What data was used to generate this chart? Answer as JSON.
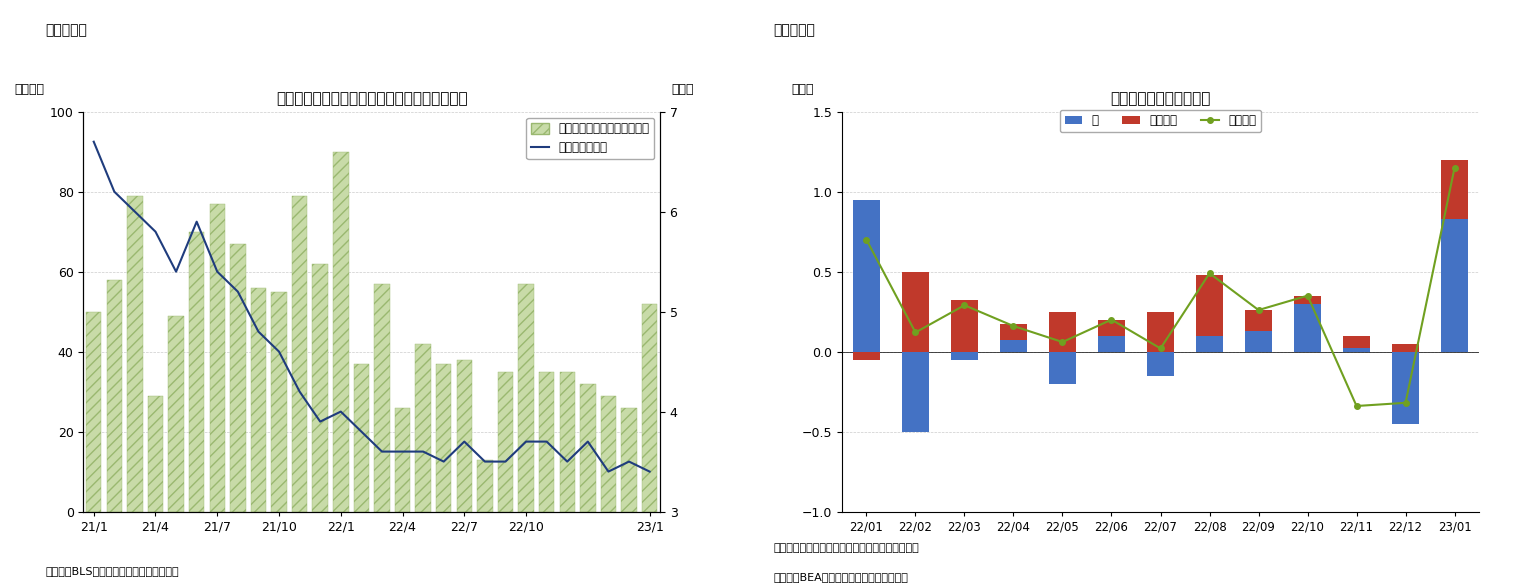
{
  "chart1": {
    "title": "米国の雇用動向（非農業部門雇用増と失業率）",
    "label_left": "（万人）",
    "label_right": "（％）",
    "super_title": "（図表２）",
    "source": "（資料）BLSよりニッセイ基礎研究所作成",
    "bar_label": "非農業部門雇用増（前月差）",
    "line_label": "失業率（右軸）",
    "bar_color": "#c8dba8",
    "bar_hatch": "///",
    "bar_hatch_color": "#9ab870",
    "line_color": "#1f3c7d",
    "x_labels": [
      "21/1",
      "21/4",
      "21/7",
      "21/10",
      "22/1",
      "22/4",
      "22/7",
      "22/10",
      "23/1"
    ],
    "tick_positions": [
      0,
      3,
      6,
      9,
      12,
      15,
      18,
      21,
      27
    ],
    "bar_values": [
      50,
      58,
      79,
      29,
      49,
      70,
      77,
      67,
      56,
      55,
      79,
      62,
      90,
      37,
      57,
      26,
      42,
      37,
      38,
      13,
      35,
      57,
      35,
      35,
      32,
      29,
      26,
      52
    ],
    "unemployment_rate": [
      6.7,
      6.2,
      6.0,
      5.8,
      5.4,
      5.9,
      5.4,
      5.2,
      4.8,
      4.6,
      4.2,
      3.9,
      4.0,
      3.8,
      3.6,
      3.6,
      3.6,
      3.5,
      3.7,
      3.5,
      3.5,
      3.7,
      3.7,
      3.5,
      3.7,
      3.4,
      3.5,
      3.4
    ],
    "ylim_left": [
      0,
      100
    ],
    "ylim_right": [
      3,
      7
    ],
    "yticks_left": [
      0,
      20,
      40,
      60,
      80,
      100
    ],
    "yticks_right": [
      3,
      4,
      5,
      6,
      7
    ]
  },
  "chart2": {
    "title": "実質個人消費（前月比）",
    "label_left": "（％）",
    "super_title": "（図表３）",
    "note": "（注）季節調節済み、前月比。棒グラフは寄与度",
    "source": "（資料）BEAよりニッセイ基礎研究所作成",
    "x_labels": [
      "22/01",
      "22/02",
      "22/03",
      "22/04",
      "22/05",
      "22/06",
      "22/07",
      "22/08",
      "22/09",
      "22/10",
      "22/11",
      "22/12",
      "23/01"
    ],
    "goods_values": [
      0.95,
      -0.5,
      -0.05,
      0.07,
      -0.2,
      0.1,
      -0.15,
      0.1,
      0.13,
      0.3,
      0.02,
      -0.45,
      0.83
    ],
    "services_values": [
      -0.05,
      0.5,
      0.32,
      0.1,
      0.25,
      0.1,
      0.25,
      0.38,
      0.13,
      0.05,
      0.08,
      0.05,
      0.37
    ],
    "personal_consumption": [
      0.7,
      0.12,
      0.29,
      0.16,
      0.06,
      0.2,
      0.02,
      0.49,
      0.26,
      0.35,
      -0.34,
      -0.32,
      1.15
    ],
    "goods_color": "#4472c4",
    "services_color": "#c0392b",
    "line_color": "#70a020",
    "ylim": [
      -1.0,
      1.5
    ],
    "yticks": [
      -1.0,
      -0.5,
      0.0,
      0.5,
      1.0,
      1.5
    ],
    "goods_label": "財",
    "services_label": "サービス",
    "consumption_label": "個人消費"
  }
}
